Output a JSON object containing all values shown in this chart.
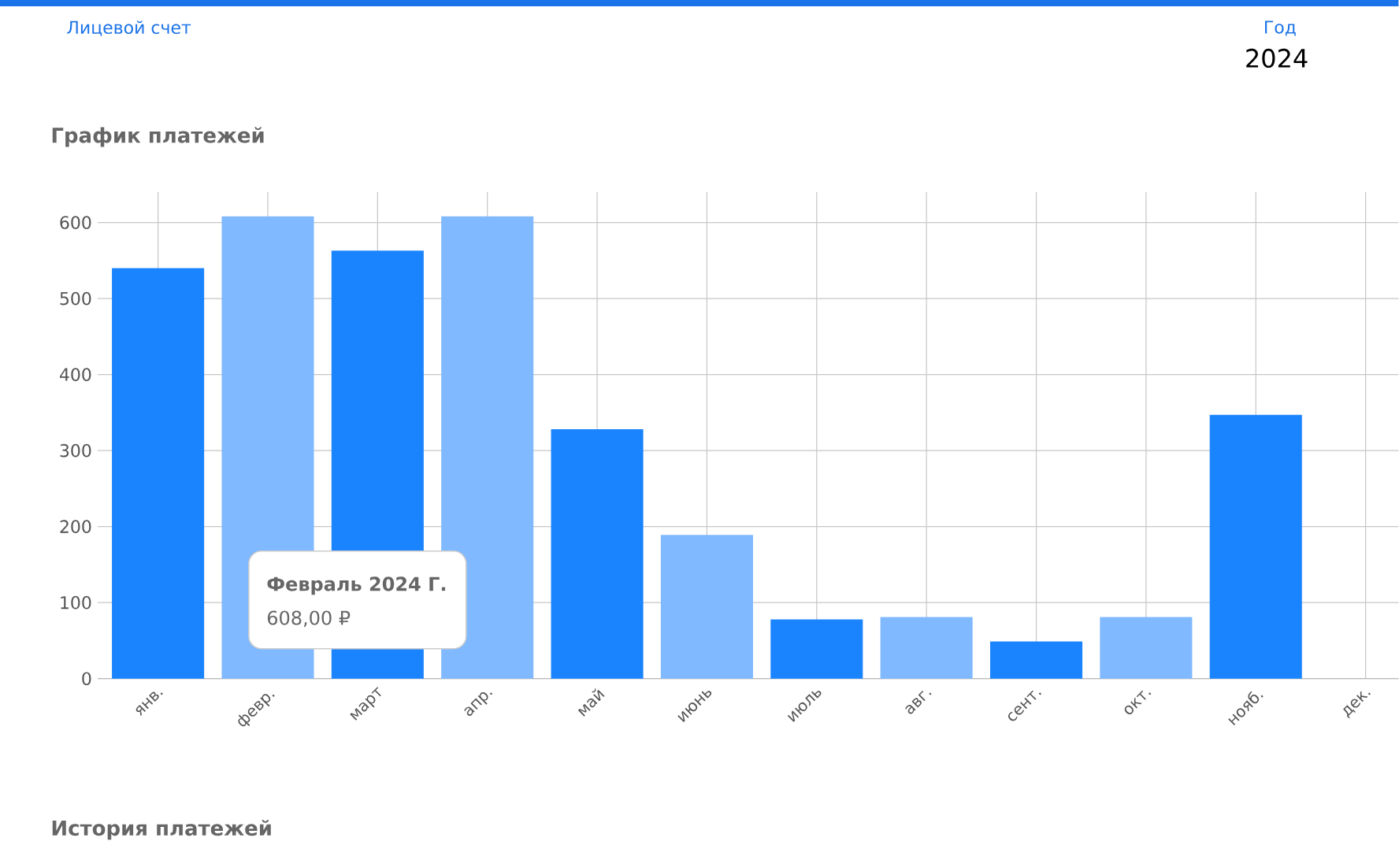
{
  "chart_data": {
    "type": "bar",
    "title": "График платежей",
    "categories": [
      "янв.",
      "февр.",
      "март",
      "апр.",
      "май",
      "июнь",
      "июль",
      "авг.",
      "сент.",
      "окт.",
      "нояб.",
      "дек."
    ],
    "values": [
      540,
      608,
      563,
      608,
      328,
      189,
      78,
      81,
      49,
      81,
      347,
      null
    ],
    "colors": [
      "#1a84ff",
      "#80b9ff",
      "#1a84ff",
      "#80b9ff",
      "#1a84ff",
      "#80b9ff",
      "#1a84ff",
      "#80b9ff",
      "#1a84ff",
      "#80b9ff",
      "#1a84ff",
      "#80b9ff"
    ],
    "ylim": [
      0,
      640
    ],
    "yticks": [
      0,
      100,
      200,
      300,
      400,
      500,
      600
    ],
    "grid": true,
    "annotations": [
      "Лицевой счет",
      "Год",
      "2024",
      "Февраль 2024 Г.",
      "608,00 ₽",
      "История платежей"
    ]
  }
}
